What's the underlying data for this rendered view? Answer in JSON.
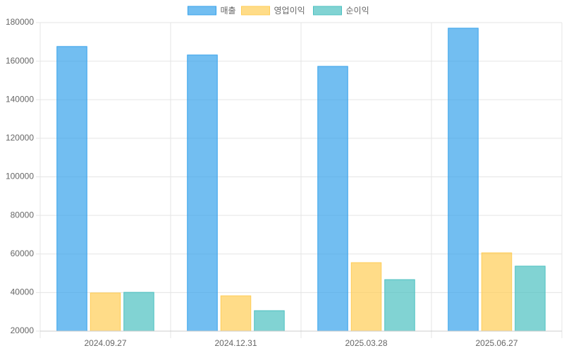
{
  "chart_data": {
    "type": "bar",
    "categories": [
      "2024.09.27",
      "2024.12.31",
      "2025.03.28",
      "2025.06.27"
    ],
    "series": [
      {
        "name": "매출",
        "color": "#36a2eb",
        "values": [
          167600,
          163200,
          157300,
          177100
        ]
      },
      {
        "name": "영업이익",
        "color": "#ffcd56",
        "values": [
          39800,
          38300,
          55500,
          60600
        ]
      },
      {
        "name": "순이익",
        "color": "#4bc0c0",
        "values": [
          40100,
          30600,
          46700,
          53700
        ]
      }
    ],
    "ylim": [
      20000,
      180000
    ],
    "yticks": [
      20000,
      40000,
      60000,
      80000,
      100000,
      120000,
      140000,
      160000,
      180000
    ],
    "grid": true,
    "legend": "top"
  }
}
